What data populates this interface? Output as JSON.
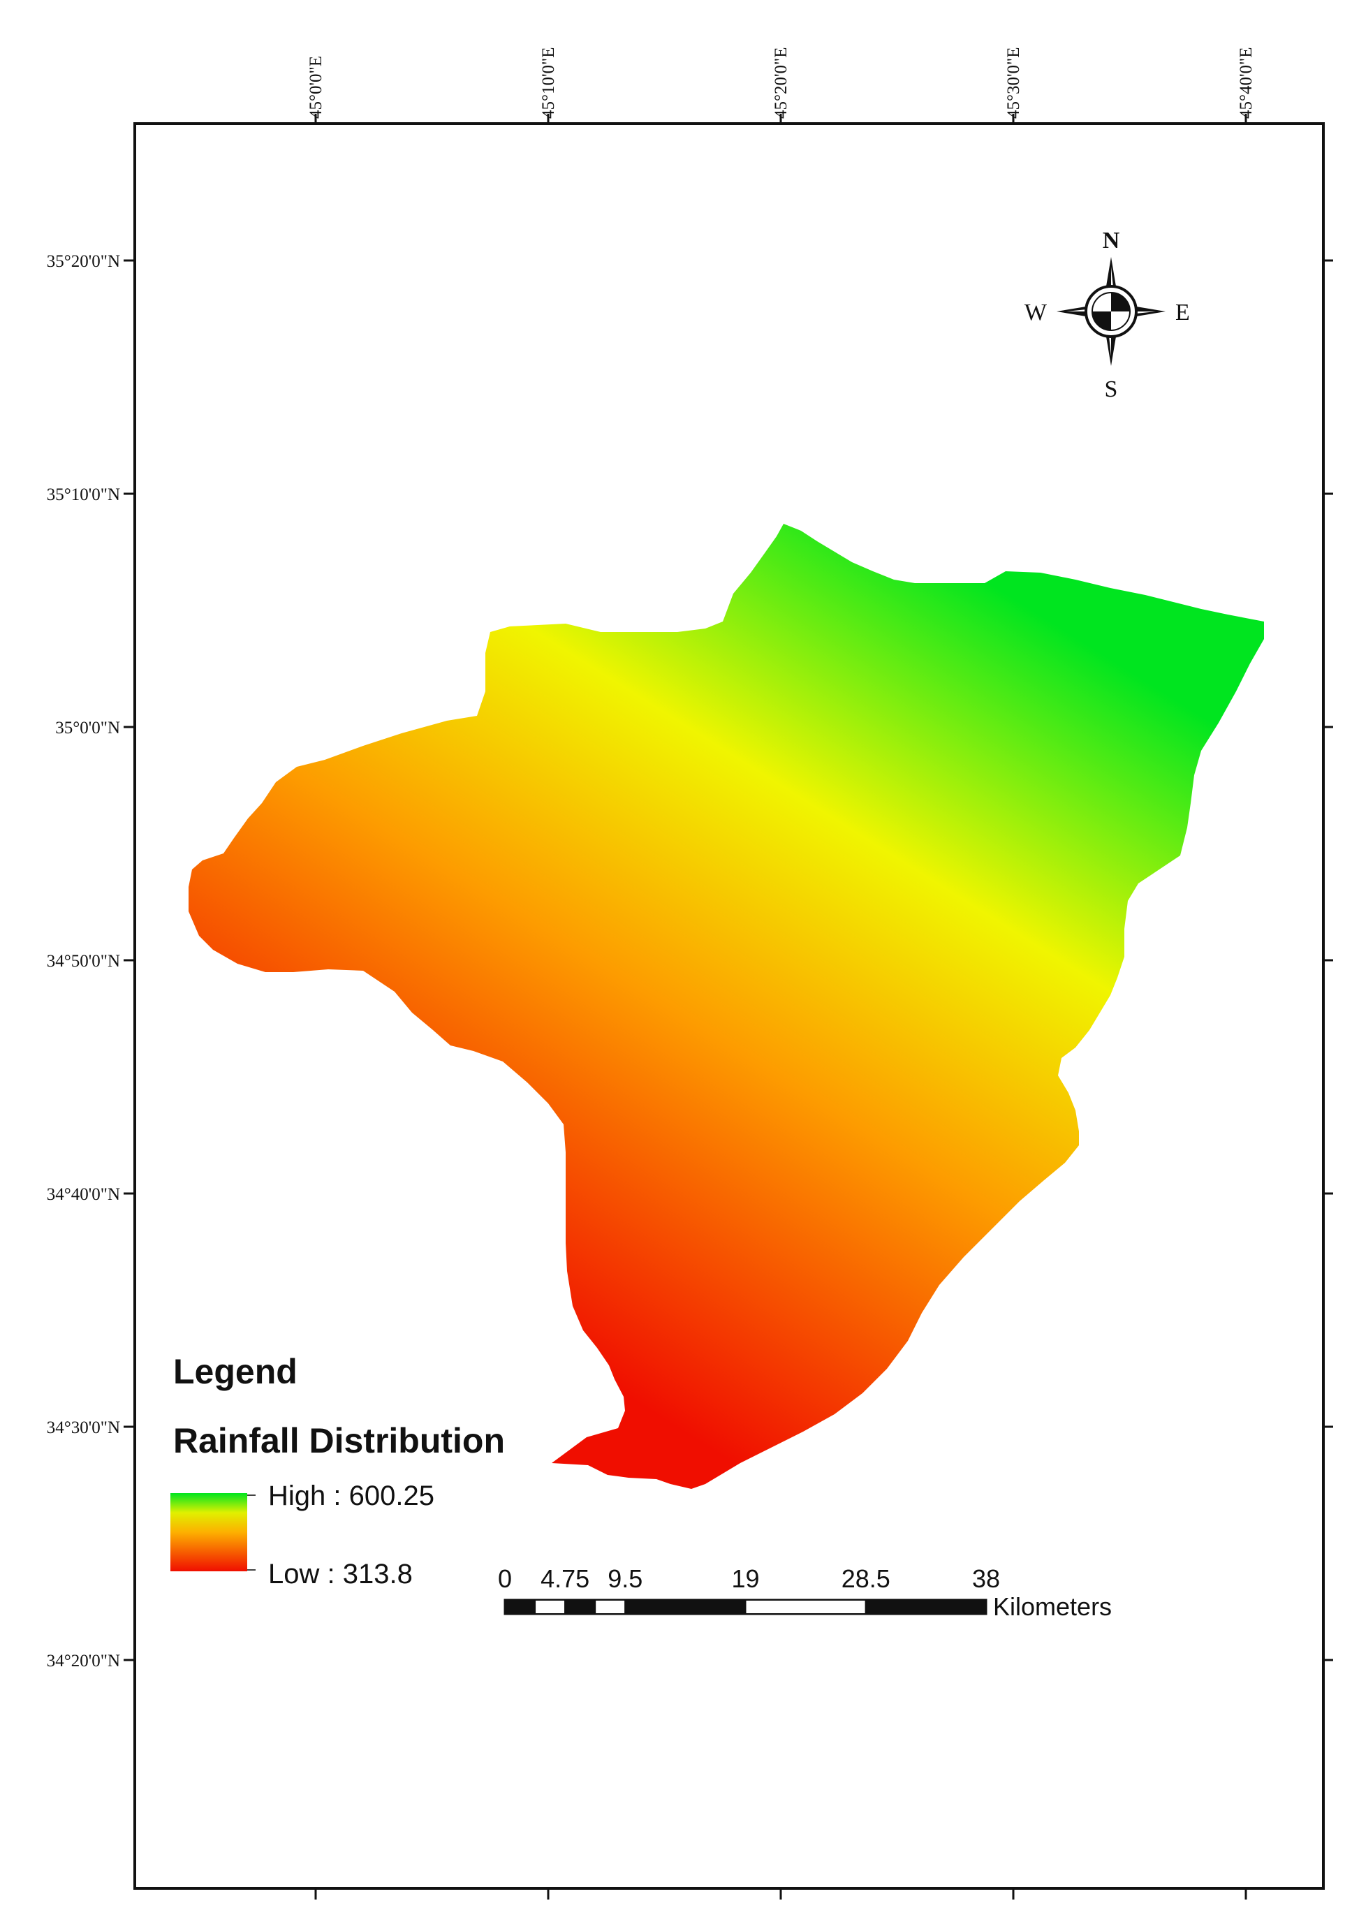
{
  "map": {
    "longitude_labels": [
      "45°0'0\"E",
      "45°10'0\"E",
      "45°20'0\"E",
      "45°30'0\"E",
      "45°40'0\"E"
    ],
    "latitude_labels": [
      "35°20'0\"N",
      "35°10'0\"N",
      "35°0'0\"N",
      "34°50'0\"N",
      "34°40'0\"N",
      "34°30'0\"N",
      "34°20'0\"N"
    ],
    "colors": {
      "high": "#00e51f",
      "mid": "#f0f500",
      "mid_low": "#fd9c00",
      "low": "#f00e00",
      "frame": "#111111"
    }
  },
  "compass": {
    "north": "N",
    "south": "S",
    "east": "E",
    "west": "W"
  },
  "legend": {
    "title": "Legend",
    "layer_name": "Rainfall Distribution",
    "high_label": "High : 600.25",
    "low_label": "Low : 313.8"
  },
  "scale_bar": {
    "ticks": [
      "0",
      "4.75",
      "9.5",
      "19",
      "28.5",
      "38"
    ],
    "unit": "Kilometers"
  }
}
